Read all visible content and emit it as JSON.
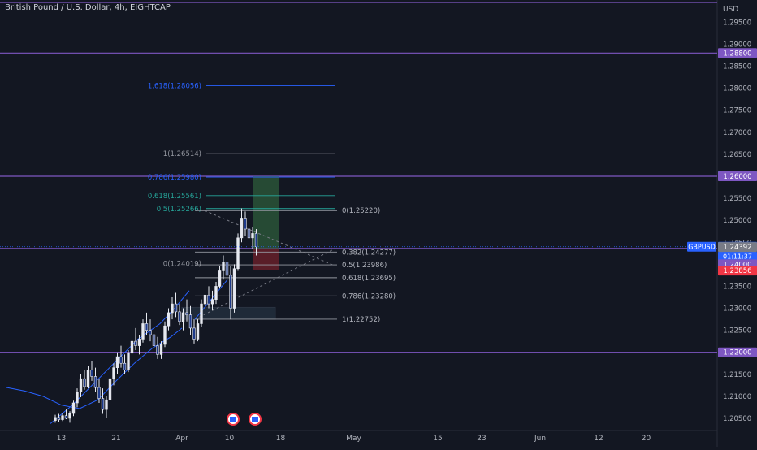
{
  "header": {
    "title": "British Pound / U.S. Dollar, 4h, EIGHTCAP"
  },
  "colors": {
    "background": "#131722",
    "candle": "#e6e9f0",
    "purple_line": "#7e57c2",
    "fib_blue": "#2962ff",
    "fib_green": "#26a69a",
    "fib_grey": "#9598a1",
    "ma_line": "#2962ff",
    "tp_zone": "#2e5c3b",
    "sl_zone": "#6b1f2a",
    "price_blue": "#2962ff",
    "price_green": "#22ab94",
    "price_red": "#f23645",
    "price_purple": "#7e57c2",
    "price_grey": "#787b86"
  },
  "chart_data": {
    "type": "candlestick",
    "symbol": "GBPUSD",
    "currency": "USD",
    "interval": "4h",
    "ylim": [
      1.2037,
      1.2995
    ],
    "y_ticks": [
      "1.29500",
      "1.29000",
      "1.28500",
      "1.28000",
      "1.27500",
      "1.27000",
      "1.26500",
      "1.26000",
      "1.25500",
      "1.25000",
      "1.24500",
      "1.24000",
      "1.23500",
      "1.23000",
      "1.22500",
      "1.22000",
      "1.21500",
      "1.21000",
      "1.20500"
    ],
    "x_ticks": [
      {
        "label": "13",
        "bar": 15
      },
      {
        "label": "21",
        "bar": 30
      },
      {
        "label": "Apr",
        "bar": 48
      },
      {
        "label": "10",
        "bar": 61
      },
      {
        "label": "18",
        "bar": 75
      },
      {
        "label": "May",
        "bar": 95
      },
      {
        "label": "15",
        "bar": 118
      },
      {
        "label": "23",
        "bar": 130
      },
      {
        "label": "Jun",
        "bar": 146
      },
      {
        "label": "12",
        "bar": 162
      },
      {
        "label": "20",
        "bar": 175
      }
    ],
    "horizontal_levels": [
      1.2995,
      1.288,
      1.26,
      1.2436,
      1.22
    ],
    "candles": [
      [
        1.2045,
        1.2058,
        1.204,
        1.2052
      ],
      [
        1.2052,
        1.206,
        1.2042,
        1.2047
      ],
      [
        1.2047,
        1.2062,
        1.2044,
        1.2056
      ],
      [
        1.2056,
        1.207,
        1.2048,
        1.205
      ],
      [
        1.205,
        1.2066,
        1.204,
        1.2061
      ],
      [
        1.2061,
        1.209,
        1.2055,
        1.2085
      ],
      [
        1.2085,
        1.2118,
        1.2075,
        1.211
      ],
      [
        1.211,
        1.215,
        1.2098,
        1.214
      ],
      [
        1.214,
        1.216,
        1.2115,
        1.2122
      ],
      [
        1.2122,
        1.2168,
        1.2118,
        1.216
      ],
      [
        1.216,
        1.218,
        1.2135,
        1.2145
      ],
      [
        1.2145,
        1.2165,
        1.211,
        1.212
      ],
      [
        1.212,
        1.214,
        1.2085,
        1.2095
      ],
      [
        1.2095,
        1.2118,
        1.206,
        1.207
      ],
      [
        1.207,
        1.21,
        1.205,
        1.2092
      ],
      [
        1.2092,
        1.215,
        1.2085,
        1.214
      ],
      [
        1.214,
        1.2175,
        1.2125,
        1.2165
      ],
      [
        1.2165,
        1.22,
        1.215,
        1.219
      ],
      [
        1.219,
        1.2215,
        1.2165,
        1.2175
      ],
      [
        1.2175,
        1.2195,
        1.215,
        1.216
      ],
      [
        1.216,
        1.2205,
        1.2155,
        1.2198
      ],
      [
        1.2198,
        1.2235,
        1.219,
        1.2225
      ],
      [
        1.2225,
        1.2255,
        1.2205,
        1.2215
      ],
      [
        1.2215,
        1.224,
        1.2195,
        1.223
      ],
      [
        1.223,
        1.2275,
        1.2222,
        1.2265
      ],
      [
        1.2265,
        1.229,
        1.224,
        1.225
      ],
      [
        1.225,
        1.2275,
        1.2225,
        1.224
      ],
      [
        1.224,
        1.226,
        1.2205,
        1.2215
      ],
      [
        1.2215,
        1.2235,
        1.2185,
        1.2195
      ],
      [
        1.2195,
        1.2225,
        1.2185,
        1.2218
      ],
      [
        1.2218,
        1.227,
        1.2212,
        1.226
      ],
      [
        1.226,
        1.23,
        1.225,
        1.229
      ],
      [
        1.229,
        1.2325,
        1.2275,
        1.231
      ],
      [
        1.231,
        1.2335,
        1.228,
        1.2292
      ],
      [
        1.2292,
        1.231,
        1.2262,
        1.227
      ],
      [
        1.227,
        1.23,
        1.225,
        1.229
      ],
      [
        1.229,
        1.232,
        1.227,
        1.2285
      ],
      [
        1.2285,
        1.2305,
        1.224,
        1.2255
      ],
      [
        1.2255,
        1.2275,
        1.222,
        1.223
      ],
      [
        1.223,
        1.2275,
        1.2225,
        1.2265
      ],
      [
        1.2265,
        1.232,
        1.2258,
        1.231
      ],
      [
        1.231,
        1.2345,
        1.23,
        1.233
      ],
      [
        1.233,
        1.235,
        1.23,
        1.231
      ],
      [
        1.231,
        1.234,
        1.2295,
        1.232
      ],
      [
        1.232,
        1.236,
        1.231,
        1.235
      ],
      [
        1.235,
        1.2395,
        1.2345,
        1.2385
      ],
      [
        1.2385,
        1.242,
        1.2365,
        1.2405
      ],
      [
        1.2405,
        1.243,
        1.236,
        1.2375
      ],
      [
        1.2375,
        1.2395,
        1.2275,
        1.23
      ],
      [
        1.23,
        1.24,
        1.229,
        1.239
      ],
      [
        1.239,
        1.247,
        1.2385,
        1.246
      ],
      [
        1.246,
        1.2527,
        1.245,
        1.2505
      ],
      [
        1.2505,
        1.252,
        1.2465,
        1.248
      ],
      [
        1.248,
        1.25,
        1.244,
        1.246
      ],
      [
        1.246,
        1.2485,
        1.2435,
        1.247
      ],
      [
        1.247,
        1.248,
        1.242,
        1.244
      ]
    ],
    "moving_averages": [
      [
        [
          0,
          1.212
        ],
        [
          5,
          1.2112
        ],
        [
          10,
          1.21
        ],
        [
          15,
          1.208
        ],
        [
          20,
          1.2072
        ],
        [
          25,
          1.2092
        ],
        [
          30,
          1.2135
        ],
        [
          35,
          1.2175
        ],
        [
          40,
          1.221
        ],
        [
          45,
          1.2235
        ],
        [
          48,
          1.2255
        ]
      ],
      [
        [
          12,
          1.2038
        ],
        [
          18,
          1.208
        ],
        [
          24,
          1.213
        ],
        [
          30,
          1.218
        ],
        [
          36,
          1.223
        ],
        [
          42,
          1.2265
        ],
        [
          46,
          1.23
        ],
        [
          50,
          1.234
        ]
      ]
    ],
    "fibonacci_upper": {
      "levels": [
        {
          "label": "1.618(1.28056)",
          "value": 1.28056,
          "color": "blue"
        },
        {
          "label": "1(1.26514)",
          "value": 1.26514,
          "color": "grey"
        },
        {
          "label": "0.786(1.25980)",
          "value": 1.2598,
          "color": "blue"
        },
        {
          "label": "0.618(1.25561)",
          "value": 1.25561,
          "color": "green"
        },
        {
          "label": "0.5(1.25266)",
          "value": 1.25266,
          "color": "green"
        },
        {
          "label": "0(1.24019)",
          "value": 1.24019,
          "color": "grey"
        }
      ]
    },
    "fibonacci_lower": {
      "levels": [
        {
          "label": "0(1.25220)",
          "value": 1.2522
        },
        {
          "label": "0.382(1.24277)",
          "value": 1.24277
        },
        {
          "label": "0.5(1.23986)",
          "value": 1.23986
        },
        {
          "label": "0.618(1.23695)",
          "value": 1.23695
        },
        {
          "label": "0.786(1.23280)",
          "value": 1.2328
        },
        {
          "label": "1(1.22752)",
          "value": 1.22752
        }
      ]
    },
    "position": {
      "entry": 1.2436,
      "target": 1.26,
      "stop": 1.2386,
      "start_bar": 54,
      "end_bar": 70
    },
    "price_labels": [
      {
        "text": "1.28800",
        "value": 1.288,
        "color": "purple"
      },
      {
        "text": "1.26004",
        "value": 1.26004,
        "color": "green"
      },
      {
        "text": "1.26000",
        "value": 1.26,
        "color": "purple"
      },
      {
        "text": "1.24399",
        "value": 1.24399,
        "color": "blue",
        "badge": "GBPUSD",
        "countdown": "01:11:37"
      },
      {
        "text": "1.24392",
        "value": 1.24392,
        "color": "grey"
      },
      {
        "text": "1.24000",
        "value": 1.24,
        "color": "purple"
      },
      {
        "text": "1.23856",
        "value": 1.23856,
        "color": "red"
      },
      {
        "text": "1.22000",
        "value": 1.22,
        "color": "purple"
      }
    ],
    "event_markers": [
      {
        "bar": 52,
        "icon": "us-flag-icon"
      },
      {
        "bar": 58,
        "icon": "us-flag-icon"
      }
    ]
  }
}
